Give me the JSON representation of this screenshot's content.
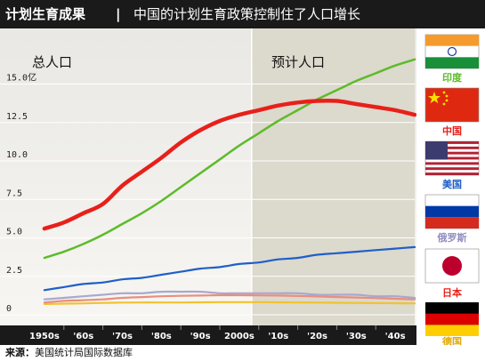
{
  "header": {
    "title": "计划生育成果",
    "separator": "|",
    "subtitle": "中国的计划生育政策控制住了人口增长"
  },
  "source": {
    "label": "来源：",
    "text": "美国统计局国际数据库"
  },
  "chart_data": {
    "type": "line",
    "ylabel": "总人口",
    "y_unit": "亿",
    "projection_label": "预计人口",
    "projection_start": "'10s",
    "ylim": [
      0,
      16.5
    ],
    "yticks": [
      "0",
      "2.5",
      "5.0",
      "7.5",
      "10.0",
      "12.5",
      "15.0亿"
    ],
    "ytick_values": [
      0,
      2.5,
      5,
      7.5,
      10,
      12.5,
      15
    ],
    "categories": [
      "1950s",
      "'60s",
      "'70s",
      "'80s",
      "'90s",
      "2000s",
      "'10s",
      "'20s",
      "'30s",
      "'40s"
    ],
    "x": [
      0,
      0.5,
      1,
      1.5,
      2,
      2.5,
      3,
      3.5,
      4,
      4.5,
      5,
      5.5,
      6,
      6.5,
      7,
      7.5,
      8,
      8.5,
      9,
      9.5
    ],
    "series": [
      {
        "name": "印度",
        "color": "#5dbb2a",
        "flag": "india-flag",
        "values": [
          3.7,
          4.1,
          4.6,
          5.2,
          5.9,
          6.6,
          7.4,
          8.3,
          9.2,
          10.1,
          11.0,
          11.8,
          12.6,
          13.3,
          14.0,
          14.6,
          15.2,
          15.7,
          16.2,
          16.6
        ]
      },
      {
        "name": "中国",
        "color": "#e8201a",
        "flag": "china-flag",
        "values": [
          5.6,
          6.0,
          6.6,
          7.2,
          8.4,
          9.3,
          10.2,
          11.2,
          12.0,
          12.6,
          13.0,
          13.3,
          13.6,
          13.8,
          13.9,
          13.9,
          13.7,
          13.5,
          13.3,
          13.0
        ]
      },
      {
        "name": "美国",
        "color": "#1f5fc8",
        "flag": "usa-flag",
        "values": [
          1.6,
          1.8,
          2.0,
          2.1,
          2.3,
          2.4,
          2.6,
          2.8,
          3.0,
          3.1,
          3.3,
          3.4,
          3.6,
          3.7,
          3.9,
          4.0,
          4.1,
          4.2,
          4.3,
          4.4
        ]
      },
      {
        "name": "俄罗斯",
        "color": "#a9a8cf",
        "flag": "russia-flag",
        "values": [
          1.0,
          1.1,
          1.2,
          1.3,
          1.4,
          1.4,
          1.5,
          1.5,
          1.5,
          1.4,
          1.4,
          1.4,
          1.4,
          1.4,
          1.3,
          1.3,
          1.3,
          1.2,
          1.2,
          1.1
        ]
      },
      {
        "name": "日本",
        "color": "#e88f7c",
        "flag": "japan-flag",
        "values": [
          0.8,
          0.9,
          0.95,
          1.0,
          1.1,
          1.15,
          1.2,
          1.23,
          1.25,
          1.27,
          1.27,
          1.26,
          1.25,
          1.22,
          1.19,
          1.15,
          1.12,
          1.08,
          1.04,
          1.0
        ]
      },
      {
        "name": "德国",
        "color": "#f2c22e",
        "flag": "germany-flag",
        "values": [
          0.7,
          0.72,
          0.74,
          0.77,
          0.79,
          0.8,
          0.8,
          0.8,
          0.81,
          0.82,
          0.82,
          0.82,
          0.81,
          0.8,
          0.79,
          0.78,
          0.77,
          0.76,
          0.75,
          0.74
        ]
      }
    ]
  }
}
